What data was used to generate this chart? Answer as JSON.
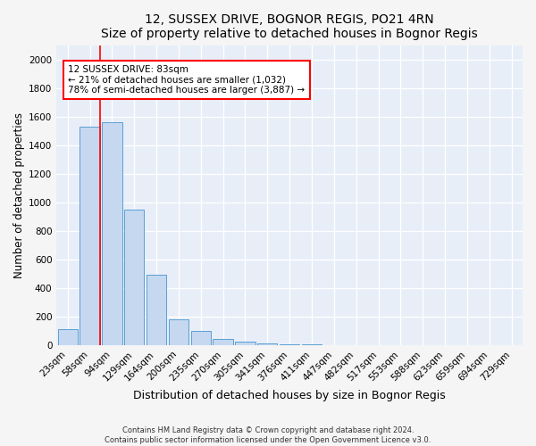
{
  "title": "12, SUSSEX DRIVE, BOGNOR REGIS, PO21 4RN",
  "subtitle": "Size of property relative to detached houses in Bognor Regis",
  "xlabel": "Distribution of detached houses by size in Bognor Regis",
  "ylabel": "Number of detached properties",
  "footnote": "Contains HM Land Registry data © Crown copyright and database right 2024.\nContains public sector information licensed under the Open Government Licence v3.0.",
  "bar_labels": [
    "23sqm",
    "58sqm",
    "94sqm",
    "129sqm",
    "164sqm",
    "200sqm",
    "235sqm",
    "270sqm",
    "305sqm",
    "341sqm",
    "376sqm",
    "411sqm",
    "447sqm",
    "482sqm",
    "517sqm",
    "553sqm",
    "588sqm",
    "623sqm",
    "659sqm",
    "694sqm",
    "729sqm"
  ],
  "bar_values": [
    110,
    1530,
    1560,
    950,
    490,
    180,
    100,
    45,
    25,
    15,
    8,
    3,
    0,
    0,
    0,
    0,
    0,
    0,
    0,
    0,
    0
  ],
  "bar_color": "#c5d8f0",
  "bar_edgecolor": "#5a9fd4",
  "annotation_line1": "12 SUSSEX DRIVE: 83sqm",
  "annotation_line2": "← 21% of detached houses are smaller (1,032)",
  "annotation_line3": "78% of semi-detached houses are larger (3,887) →",
  "ylim": [
    0,
    2100
  ],
  "yticks": [
    0,
    200,
    400,
    600,
    800,
    1000,
    1200,
    1400,
    1600,
    1800,
    2000
  ],
  "background_color": "#e8eef8",
  "grid_color": "#ffffff",
  "title_fontsize": 10,
  "subtitle_fontsize": 9,
  "axis_label_fontsize": 8.5,
  "tick_fontsize": 7.5,
  "annotation_fontsize": 7.5
}
